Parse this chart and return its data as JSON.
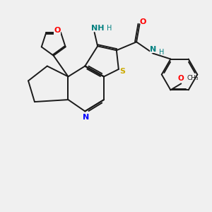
{
  "bg_color": "#f0f0f0",
  "bond_color": "#1a1a1a",
  "atom_colors": {
    "N": "#0000ff",
    "O": "#ff0000",
    "S": "#ccaa00",
    "NH": "#008080"
  },
  "lw": 1.4,
  "xlim": [
    0,
    10
  ],
  "ylim": [
    0,
    10
  ]
}
